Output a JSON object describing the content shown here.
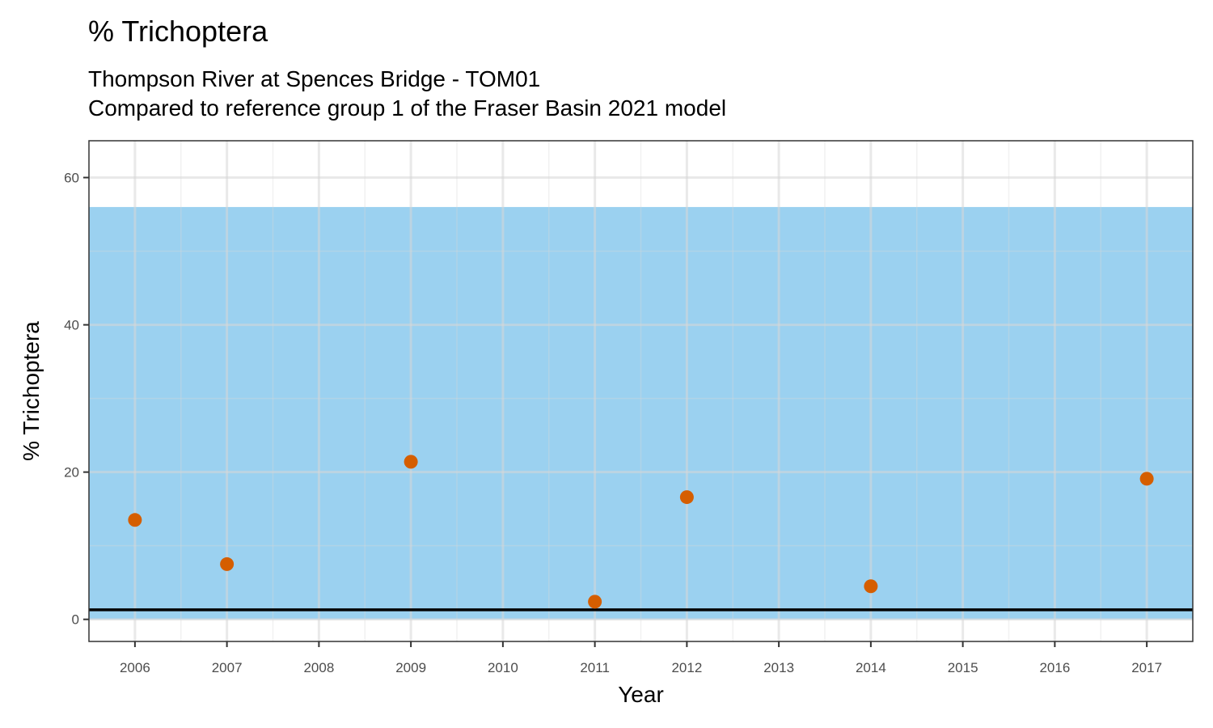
{
  "chart_data": {
    "type": "scatter",
    "title": "% Trichoptera",
    "subtitle_lines": [
      "Thompson River at Spences Bridge - TOM01",
      "Compared to reference group 1 of the Fraser Basin 2021 model"
    ],
    "xlabel": "Year",
    "ylabel": "% Trichoptera",
    "x_ticks": [
      2006,
      2007,
      2008,
      2009,
      2010,
      2011,
      2012,
      2013,
      2014,
      2015,
      2016,
      2017
    ],
    "y_ticks": [
      0,
      20,
      40,
      60
    ],
    "xlim": [
      2005.5,
      2017.5
    ],
    "ylim": [
      -3,
      65
    ],
    "grid": true,
    "reference_band": {
      "ymin": 0,
      "ymax": 56,
      "color": "#9bd1f0"
    },
    "reference_line": {
      "y": 1.3,
      "color": "#000000"
    },
    "points": [
      {
        "x": 2006,
        "y": 13.5
      },
      {
        "x": 2007,
        "y": 7.5
      },
      {
        "x": 2009,
        "y": 21.4
      },
      {
        "x": 2011,
        "y": 2.4
      },
      {
        "x": 2012,
        "y": 16.6
      },
      {
        "x": 2014,
        "y": 4.5
      },
      {
        "x": 2017,
        "y": 19.1
      }
    ],
    "point_color": "#d55e00"
  }
}
